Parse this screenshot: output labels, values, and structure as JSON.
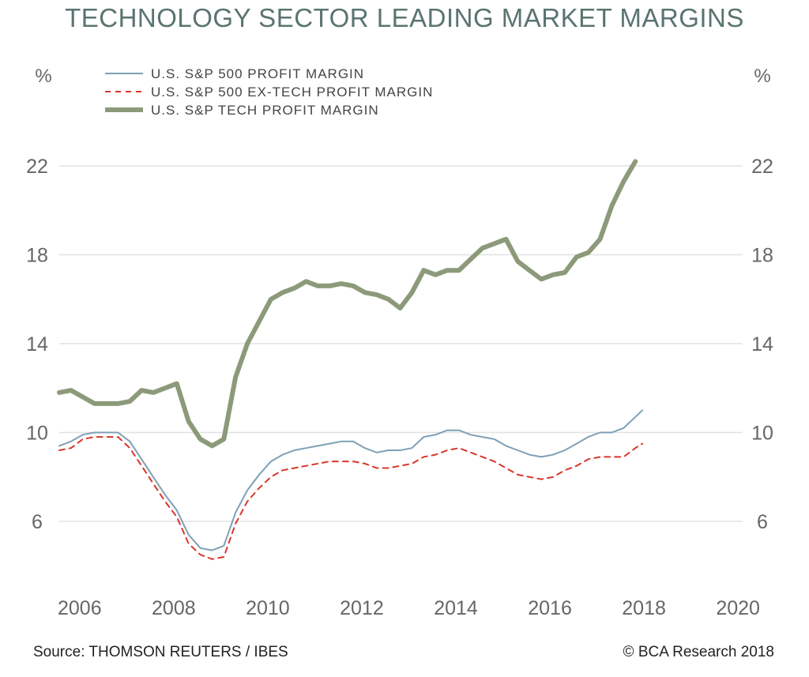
{
  "chart_data": {
    "type": "line",
    "title": "TECHNOLOGY SECTOR LEADING MARKET MARGINS",
    "y_unit_left": "%",
    "y_unit_right": "%",
    "ylim": [
      3,
      25
    ],
    "xlim": [
      2005.6,
      2020.3
    ],
    "yticks": [
      6,
      10,
      14,
      18,
      22
    ],
    "xticks": [
      2006,
      2008,
      2010,
      2012,
      2014,
      2016,
      2018,
      2020
    ],
    "grid": true,
    "legend_position": "top-left",
    "series": [
      {
        "name": "U.S. S&P 500 PROFIT MARGIN",
        "color": "#7fa0b6",
        "style": "solid",
        "points": [
          [
            2005.6,
            9.4
          ],
          [
            2005.85,
            9.6
          ],
          [
            2006.1,
            9.9
          ],
          [
            2006.35,
            10.0
          ],
          [
            2006.6,
            10.0
          ],
          [
            2006.85,
            10.0
          ],
          [
            2007.1,
            9.6
          ],
          [
            2007.35,
            8.8
          ],
          [
            2007.6,
            8.0
          ],
          [
            2007.85,
            7.2
          ],
          [
            2008.1,
            6.5
          ],
          [
            2008.35,
            5.4
          ],
          [
            2008.6,
            4.8
          ],
          [
            2008.85,
            4.7
          ],
          [
            2009.1,
            4.9
          ],
          [
            2009.35,
            6.4
          ],
          [
            2009.6,
            7.4
          ],
          [
            2009.85,
            8.1
          ],
          [
            2010.1,
            8.7
          ],
          [
            2010.35,
            9.0
          ],
          [
            2010.6,
            9.2
          ],
          [
            2010.85,
            9.3
          ],
          [
            2011.1,
            9.4
          ],
          [
            2011.35,
            9.5
          ],
          [
            2011.6,
            9.6
          ],
          [
            2011.85,
            9.6
          ],
          [
            2012.1,
            9.3
          ],
          [
            2012.35,
            9.1
          ],
          [
            2012.6,
            9.2
          ],
          [
            2012.85,
            9.2
          ],
          [
            2013.1,
            9.3
          ],
          [
            2013.35,
            9.8
          ],
          [
            2013.6,
            9.9
          ],
          [
            2013.85,
            10.1
          ],
          [
            2014.1,
            10.1
          ],
          [
            2014.35,
            9.9
          ],
          [
            2014.6,
            9.8
          ],
          [
            2014.85,
            9.7
          ],
          [
            2015.1,
            9.4
          ],
          [
            2015.35,
            9.2
          ],
          [
            2015.6,
            9.0
          ],
          [
            2015.85,
            8.9
          ],
          [
            2016.1,
            9.0
          ],
          [
            2016.35,
            9.2
          ],
          [
            2016.6,
            9.5
          ],
          [
            2016.85,
            9.8
          ],
          [
            2017.1,
            10.0
          ],
          [
            2017.35,
            10.0
          ],
          [
            2017.6,
            10.2
          ],
          [
            2017.85,
            10.7
          ],
          [
            2018.0,
            11.0
          ]
        ]
      },
      {
        "name": "U.S. S&P 500 EX-TECH PROFIT MARGIN",
        "color": "#d9362b",
        "style": "dashed",
        "points": [
          [
            2005.6,
            9.2
          ],
          [
            2005.85,
            9.3
          ],
          [
            2006.1,
            9.7
          ],
          [
            2006.35,
            9.8
          ],
          [
            2006.6,
            9.8
          ],
          [
            2006.85,
            9.8
          ],
          [
            2007.1,
            9.3
          ],
          [
            2007.35,
            8.5
          ],
          [
            2007.6,
            7.7
          ],
          [
            2007.85,
            6.9
          ],
          [
            2008.1,
            6.2
          ],
          [
            2008.35,
            5.0
          ],
          [
            2008.6,
            4.5
          ],
          [
            2008.85,
            4.3
          ],
          [
            2009.1,
            4.4
          ],
          [
            2009.35,
            5.9
          ],
          [
            2009.6,
            6.9
          ],
          [
            2009.85,
            7.5
          ],
          [
            2010.1,
            8.0
          ],
          [
            2010.35,
            8.3
          ],
          [
            2010.6,
            8.4
          ],
          [
            2010.85,
            8.5
          ],
          [
            2011.1,
            8.6
          ],
          [
            2011.35,
            8.7
          ],
          [
            2011.6,
            8.7
          ],
          [
            2011.85,
            8.7
          ],
          [
            2012.1,
            8.6
          ],
          [
            2012.35,
            8.4
          ],
          [
            2012.6,
            8.4
          ],
          [
            2012.85,
            8.5
          ],
          [
            2013.1,
            8.6
          ],
          [
            2013.35,
            8.9
          ],
          [
            2013.6,
            9.0
          ],
          [
            2013.85,
            9.2
          ],
          [
            2014.1,
            9.3
          ],
          [
            2014.35,
            9.1
          ],
          [
            2014.6,
            8.9
          ],
          [
            2014.85,
            8.7
          ],
          [
            2015.1,
            8.4
          ],
          [
            2015.35,
            8.1
          ],
          [
            2015.6,
            8.0
          ],
          [
            2015.85,
            7.9
          ],
          [
            2016.1,
            8.0
          ],
          [
            2016.35,
            8.3
          ],
          [
            2016.6,
            8.5
          ],
          [
            2016.85,
            8.8
          ],
          [
            2017.1,
            8.9
          ],
          [
            2017.35,
            8.9
          ],
          [
            2017.6,
            8.9
          ],
          [
            2017.85,
            9.3
          ],
          [
            2018.0,
            9.5
          ]
        ]
      },
      {
        "name": "U.S. S&P TECH PROFIT MARGIN",
        "color": "#8c9a7a",
        "style": "thick",
        "points": [
          [
            2005.6,
            11.8
          ],
          [
            2005.85,
            11.9
          ],
          [
            2006.1,
            11.6
          ],
          [
            2006.35,
            11.3
          ],
          [
            2006.6,
            11.3
          ],
          [
            2006.85,
            11.3
          ],
          [
            2007.1,
            11.4
          ],
          [
            2007.35,
            11.9
          ],
          [
            2007.6,
            11.8
          ],
          [
            2007.85,
            12.0
          ],
          [
            2008.1,
            12.2
          ],
          [
            2008.35,
            10.5
          ],
          [
            2008.6,
            9.7
          ],
          [
            2008.85,
            9.4
          ],
          [
            2009.1,
            9.7
          ],
          [
            2009.35,
            12.5
          ],
          [
            2009.6,
            14.0
          ],
          [
            2009.85,
            15.0
          ],
          [
            2010.1,
            16.0
          ],
          [
            2010.35,
            16.3
          ],
          [
            2010.6,
            16.5
          ],
          [
            2010.85,
            16.8
          ],
          [
            2011.1,
            16.6
          ],
          [
            2011.35,
            16.6
          ],
          [
            2011.6,
            16.7
          ],
          [
            2011.85,
            16.6
          ],
          [
            2012.1,
            16.3
          ],
          [
            2012.35,
            16.2
          ],
          [
            2012.6,
            16.0
          ],
          [
            2012.85,
            15.6
          ],
          [
            2013.1,
            16.3
          ],
          [
            2013.35,
            17.3
          ],
          [
            2013.6,
            17.1
          ],
          [
            2013.85,
            17.3
          ],
          [
            2014.1,
            17.3
          ],
          [
            2014.35,
            17.8
          ],
          [
            2014.6,
            18.3
          ],
          [
            2014.85,
            18.5
          ],
          [
            2015.1,
            18.7
          ],
          [
            2015.35,
            17.7
          ],
          [
            2015.6,
            17.3
          ],
          [
            2015.85,
            16.9
          ],
          [
            2016.1,
            17.1
          ],
          [
            2016.35,
            17.2
          ],
          [
            2016.6,
            17.9
          ],
          [
            2016.85,
            18.1
          ],
          [
            2017.1,
            18.7
          ],
          [
            2017.35,
            20.2
          ],
          [
            2017.6,
            21.3
          ],
          [
            2017.85,
            22.2
          ]
        ]
      }
    ]
  },
  "footer": {
    "source": "Source: THOMSON REUTERS / IBES",
    "copyright": "© BCA Research 2018"
  }
}
